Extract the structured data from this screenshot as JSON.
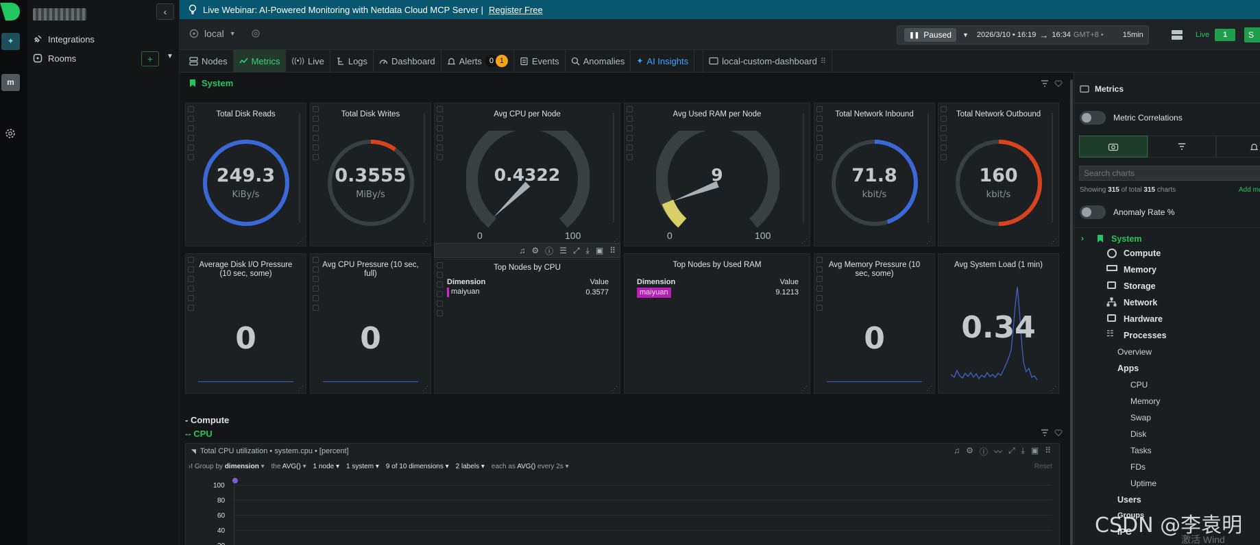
{
  "banner": {
    "text": "Live Webinar: AI-Powered Monitoring with Netdata Cloud MCP Server |",
    "link": "Register Free"
  },
  "sidebar": {
    "space_a": "✦",
    "space_m": "m",
    "items": [
      {
        "label": "Integrations"
      },
      {
        "label": "Rooms"
      }
    ]
  },
  "topbar": {
    "room": "local",
    "paused_label": "Paused",
    "time_from": "2026/3/10 • 16:19",
    "arrow": "→",
    "time_to": "16:34",
    "timezone": "GMT+8 •",
    "duration": "15min",
    "live_label": "Live",
    "live_count": "1",
    "sign_btn": "S"
  },
  "tabs": [
    {
      "label": "Nodes"
    },
    {
      "label": "Metrics"
    },
    {
      "label": "Live"
    },
    {
      "label": "Logs"
    },
    {
      "label": "Dashboard"
    },
    {
      "label": "Alerts",
      "critical": "0",
      "warning": "1"
    },
    {
      "label": "Events"
    },
    {
      "label": "Anomalies"
    },
    {
      "label": "AI Insights"
    },
    {
      "label": "local-custom-dashboard"
    }
  ],
  "main": {
    "section_system": "System",
    "section_compute": "- Compute",
    "section_cpu": "-- CPU",
    "cards_row1": [
      {
        "title": "Total Disk Reads",
        "value": "249.3",
        "unit": "KiBy/s",
        "color": "#3a68d6",
        "fraction": 1.0
      },
      {
        "title": "Total Disk Writes",
        "value": "0.3555",
        "unit": "MiBy/s",
        "color": "#d9431e",
        "fraction": 0.1
      },
      {
        "title": "Avg CPU per Node",
        "value": "0.4322",
        "min": "0",
        "max": "100",
        "needle": 0.004
      },
      {
        "title": "Avg Used RAM per Node",
        "value": "9",
        "min": "0",
        "max": "100",
        "needle": 0.09
      },
      {
        "title": "Total Network Inbound",
        "value": "71.8",
        "unit": "kbit/s",
        "color": "#3a68d6",
        "fraction": 0.45
      },
      {
        "title": "Total Network Outbound",
        "value": "160",
        "unit": "kbit/s",
        "color": "#d9431e",
        "fraction": 0.5
      }
    ],
    "cards_row2": [
      {
        "title": "Average Disk I/O Pressure (10 sec, some)",
        "value": "0"
      },
      {
        "title": "Avg CPU Pressure (10 sec, full)",
        "value": "0"
      },
      {
        "title": "Top Nodes by CPU",
        "col_dim": "Dimension",
        "col_val": "Value",
        "row_name": "maiyuan",
        "row_value": "0.3577"
      },
      {
        "title": "Top Nodes by Used RAM",
        "col_dim": "Dimension",
        "col_val": "Value",
        "row_name": "maiyuan",
        "row_value": "9.1213"
      },
      {
        "title": "Avg Memory Pressure (10 sec, some)",
        "value": "0"
      },
      {
        "title": "Avg System Load (1 min)",
        "value": "0.34"
      }
    ],
    "cpu_chart": {
      "title": "Total CPU utilization • system.cpu • [percent]",
      "group_prefix": "Group by",
      "group_by": "dimension",
      "the": "the",
      "agg": "AVG()",
      "nodes": "1 node",
      "systems": "1 system",
      "dims": "9 of 10 dimensions",
      "labels": "2 labels",
      "each_as": "each as",
      "each_agg": "AVG()",
      "every": "every 2s",
      "reset": "Reset",
      "yticks": [
        "100",
        "80",
        "60",
        "40",
        "20"
      ]
    }
  },
  "right_panel": {
    "title": "Metrics",
    "metric_correlations": "Metric Correlations",
    "search_placeholder": "Search charts",
    "showing_a": "Showing",
    "showing_n": "315",
    "showing_b": "of total",
    "showing_t": "315",
    "showing_c": "charts",
    "add_more": "Add mo",
    "anomaly_rate": "Anomaly Rate %",
    "tree": {
      "system": "System",
      "compute": "Compute",
      "memory": "Memory",
      "storage": "Storage",
      "network": "Network",
      "hardware": "Hardware",
      "processes": "Processes",
      "overview": "Overview",
      "apps": "Apps",
      "cpu": "CPU",
      "mem": "Memory",
      "swap": "Swap",
      "disk": "Disk",
      "tasks": "Tasks",
      "fds": "FDs",
      "uptime": "Uptime",
      "users": "Users",
      "groups": "Groups",
      "ipc": "IPC"
    }
  },
  "watermark": "CSDN @李袁明",
  "watermark2": "激活 Wind"
}
